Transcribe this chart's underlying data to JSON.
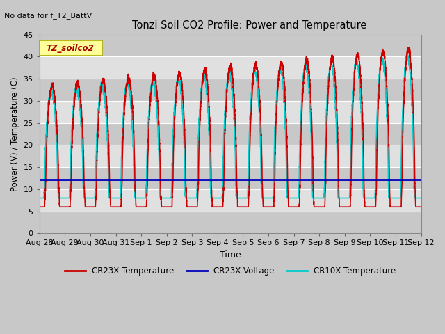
{
  "title": "Tonzi Soil CO2 Profile: Power and Temperature",
  "no_data_text": "No data for f_T2_BattV",
  "legend_box_label": "TZ_soilco2",
  "ylabel": "Power (V) / Temperature (C)",
  "xlabel": "Time",
  "ylim": [
    0,
    45
  ],
  "yticks": [
    0,
    5,
    10,
    15,
    20,
    25,
    30,
    35,
    40,
    45
  ],
  "fig_bg_color": "#c8c8c8",
  "plot_bg_color": "#d8d8d8",
  "band_light": "#e0e0e0",
  "band_dark": "#c8c8c8",
  "series": {
    "cr23x_temp": {
      "color": "#cc0000",
      "lw": 1.2,
      "label": "CR23X Temperature"
    },
    "cr23x_volt": {
      "color": "#0000bb",
      "lw": 2.0,
      "label": "CR23X Voltage"
    },
    "cr10x_temp": {
      "color": "#00cccc",
      "lw": 1.2,
      "label": "CR10X Temperature"
    }
  },
  "x_start_day": 0,
  "x_end_day": 15.0,
  "num_points": 5000,
  "voltage_level": 12.1,
  "x_tick_labels": [
    "Aug 28",
    "Aug 29",
    "Aug 30",
    "Aug 31",
    "Sep 1",
    "Sep 2",
    "Sep 3",
    "Sep 4",
    "Sep 5",
    "Sep 6",
    "Sep 7",
    "Sep 8",
    "Sep 9",
    "Sep 10",
    "Sep 11",
    "Sep 12"
  ],
  "x_tick_positions": [
    0,
    1,
    2,
    3,
    4,
    5,
    6,
    7,
    8,
    9,
    10,
    11,
    12,
    13,
    14,
    15
  ]
}
